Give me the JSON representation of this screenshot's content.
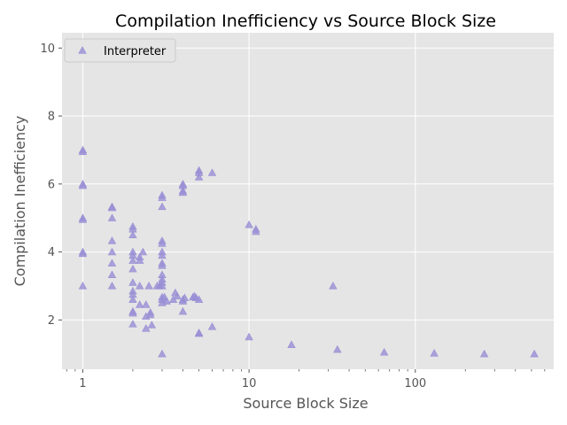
{
  "chart_data": {
    "type": "scatter",
    "title": "Compilation Inefficiency vs Source Block Size",
    "xlabel": "Source Block Size",
    "ylabel": "Compilation Inefficiency",
    "xscale": "log",
    "xlim": [
      0.75,
      680
    ],
    "ylim": [
      0.55,
      10.45
    ],
    "xticks": [
      {
        "value": 1,
        "label": "1"
      },
      {
        "value": 10,
        "label": "10"
      },
      {
        "value": 100,
        "label": "100"
      }
    ],
    "yticks": [
      {
        "value": 2,
        "label": "2"
      },
      {
        "value": 4,
        "label": "4"
      },
      {
        "value": 6,
        "label": "6"
      },
      {
        "value": 8,
        "label": "8"
      },
      {
        "value": 10,
        "label": "10"
      }
    ],
    "grid": true,
    "background": "#e5e5e5",
    "grid_color": "#ffffff",
    "marker": "triangle",
    "legend": {
      "position": "top-left",
      "entries": [
        "Interpreter"
      ]
    },
    "series": [
      {
        "name": "Interpreter",
        "color": "#988ed5",
        "points": [
          [
            1,
            7.0
          ],
          [
            1,
            6.95
          ],
          [
            1,
            6.0
          ],
          [
            1,
            5.95
          ],
          [
            1,
            5.0
          ],
          [
            1,
            4.95
          ],
          [
            1,
            4.0
          ],
          [
            1,
            3.95
          ],
          [
            1,
            3.0
          ],
          [
            1.5,
            5.33
          ],
          [
            1.5,
            5.3
          ],
          [
            1.5,
            5.0
          ],
          [
            1.5,
            4.33
          ],
          [
            1.5,
            4.0
          ],
          [
            1.5,
            3.67
          ],
          [
            1.5,
            3.33
          ],
          [
            1.5,
            3.0
          ],
          [
            2,
            4.75
          ],
          [
            2,
            4.67
          ],
          [
            2,
            4.5
          ],
          [
            2,
            4.0
          ],
          [
            2,
            3.9
          ],
          [
            2,
            3.75
          ],
          [
            2,
            3.5
          ],
          [
            2,
            3.1
          ],
          [
            2,
            2.85
          ],
          [
            2,
            2.75
          ],
          [
            2,
            2.6
          ],
          [
            2,
            2.25
          ],
          [
            2,
            2.2
          ],
          [
            2,
            1.88
          ],
          [
            2.2,
            3.85
          ],
          [
            2.2,
            3.75
          ],
          [
            2.2,
            3.0
          ],
          [
            2.2,
            2.45
          ],
          [
            2.3,
            4.0
          ],
          [
            2.4,
            2.45
          ],
          [
            2.4,
            2.1
          ],
          [
            2.4,
            1.75
          ],
          [
            2.5,
            3.0
          ],
          [
            2.55,
            2.22
          ],
          [
            2.55,
            2.15
          ],
          [
            2.6,
            1.85
          ],
          [
            2.8,
            3.0
          ],
          [
            2.9,
            3.0
          ],
          [
            3,
            5.67
          ],
          [
            3,
            5.6
          ],
          [
            3,
            5.33
          ],
          [
            3,
            4.33
          ],
          [
            3,
            4.25
          ],
          [
            3,
            4.0
          ],
          [
            3,
            3.9
          ],
          [
            3,
            3.67
          ],
          [
            3,
            3.6
          ],
          [
            3,
            3.33
          ],
          [
            3,
            3.2
          ],
          [
            3,
            3.1
          ],
          [
            3,
            3.0
          ],
          [
            3,
            2.67
          ],
          [
            3,
            2.6
          ],
          [
            3,
            2.5
          ],
          [
            3,
            1.0
          ],
          [
            3.1,
            2.67
          ],
          [
            3.2,
            2.55
          ],
          [
            3.5,
            2.6
          ],
          [
            3.6,
            2.8
          ],
          [
            3.7,
            2.7
          ],
          [
            4,
            6.0
          ],
          [
            4,
            5.95
          ],
          [
            4,
            5.8
          ],
          [
            4,
            5.75
          ],
          [
            4,
            2.6
          ],
          [
            4,
            2.55
          ],
          [
            4,
            2.25
          ],
          [
            4.1,
            2.65
          ],
          [
            4.6,
            2.67
          ],
          [
            4.7,
            2.7
          ],
          [
            4.8,
            2.65
          ],
          [
            5,
            6.4
          ],
          [
            5,
            6.33
          ],
          [
            5,
            6.2
          ],
          [
            5,
            2.6
          ],
          [
            5,
            1.6
          ],
          [
            5,
            1.62
          ],
          [
            6,
            6.33
          ],
          [
            6,
            1.8
          ],
          [
            10,
            4.8
          ],
          [
            10,
            1.5
          ],
          [
            11,
            4.67
          ],
          [
            11,
            4.6
          ],
          [
            18,
            1.27
          ],
          [
            32,
            3.0
          ],
          [
            34,
            1.13
          ],
          [
            65,
            1.05
          ],
          [
            130,
            1.02
          ],
          [
            260,
            1.0
          ],
          [
            520,
            1.0
          ]
        ]
      }
    ]
  }
}
